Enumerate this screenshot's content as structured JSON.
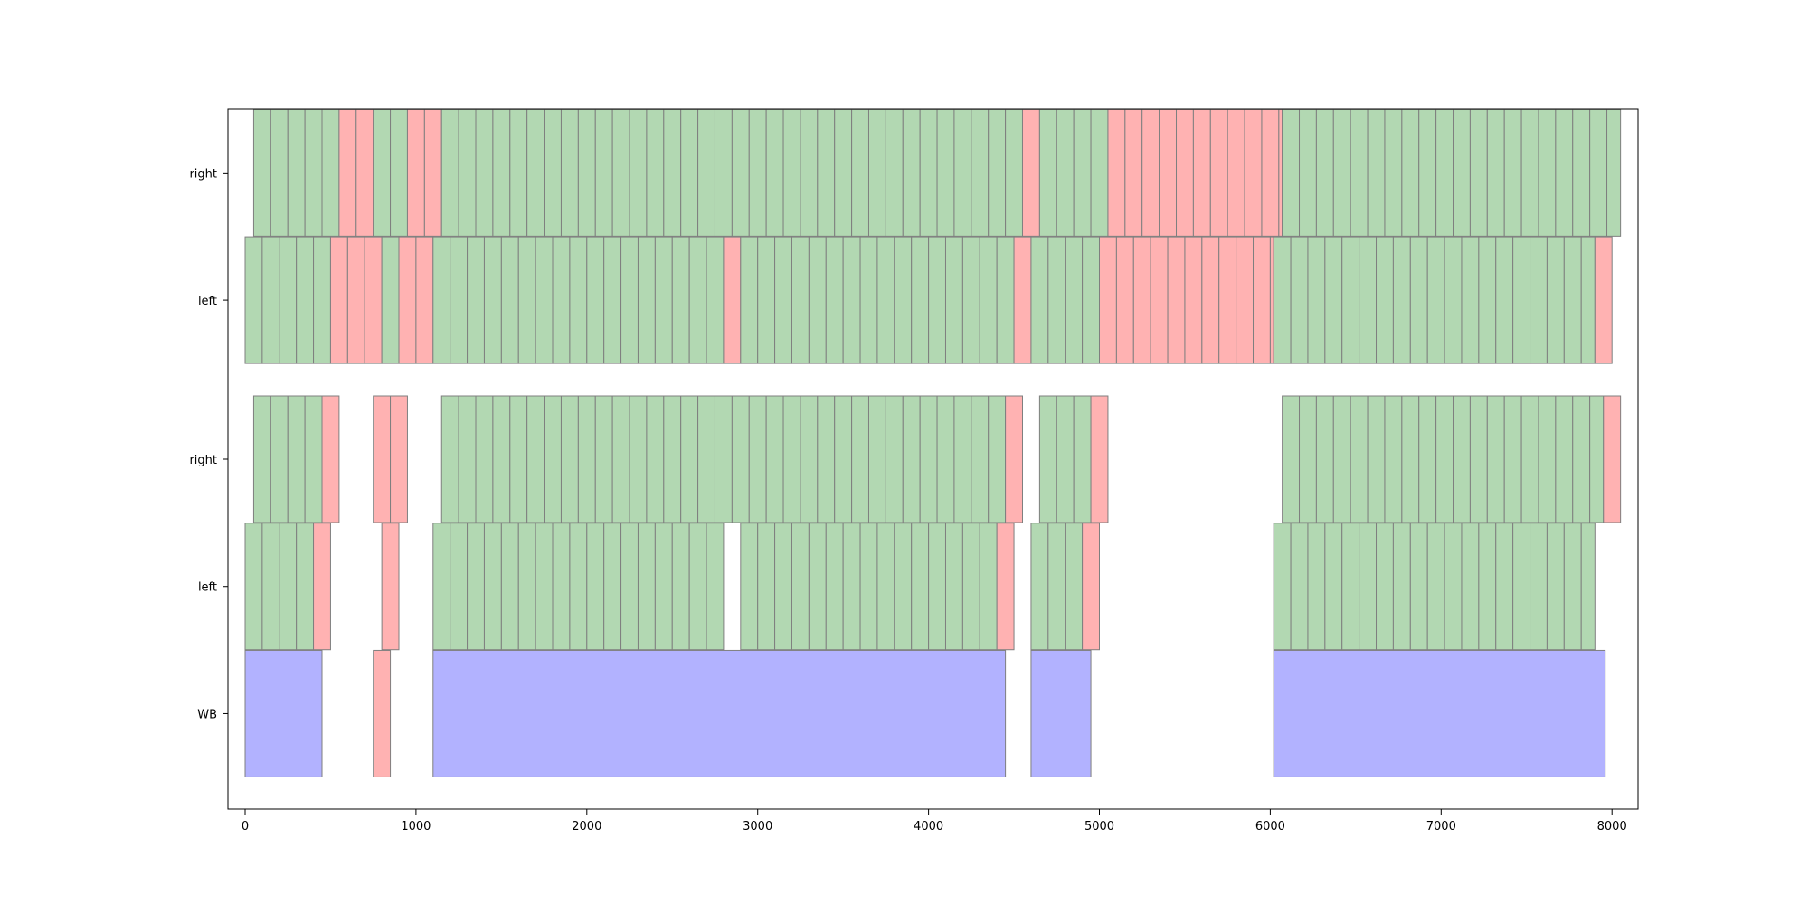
{
  "chart_data": {
    "type": "broken_barh",
    "title": "",
    "xlabel": "",
    "ylabel": "",
    "xlim": [
      -100,
      8150
    ],
    "xticks": [
      0,
      1000,
      2000,
      3000,
      4000,
      5000,
      6000,
      7000,
      8000
    ],
    "grid": false,
    "legend": "none",
    "colors": {
      "green": "#b2d8b2",
      "red": "#ffb2b2",
      "blue": "#b2b2ff",
      "edge": "#7f7f7f"
    },
    "rows": [
      {
        "label": "right",
        "band_center": 4.5,
        "segments": [
          {
            "start": 50,
            "end": 550,
            "color": "green"
          },
          {
            "start": 550,
            "end": 750,
            "color": "red"
          },
          {
            "start": 750,
            "end": 950,
            "color": "green"
          },
          {
            "start": 950,
            "end": 1150,
            "color": "red"
          },
          {
            "start": 1150,
            "end": 4550,
            "color": "green"
          },
          {
            "start": 4550,
            "end": 4650,
            "color": "red"
          },
          {
            "start": 4650,
            "end": 5050,
            "color": "green"
          },
          {
            "start": 5050,
            "end": 6070,
            "color": "red"
          },
          {
            "start": 6070,
            "end": 8050,
            "color": "green"
          }
        ]
      },
      {
        "label": "left",
        "band_center": 3.5,
        "segments": [
          {
            "start": 0,
            "end": 500,
            "color": "green"
          },
          {
            "start": 500,
            "end": 800,
            "color": "red"
          },
          {
            "start": 800,
            "end": 900,
            "color": "green"
          },
          {
            "start": 900,
            "end": 1100,
            "color": "red"
          },
          {
            "start": 1100,
            "end": 2800,
            "color": "green"
          },
          {
            "start": 2800,
            "end": 2900,
            "color": "red"
          },
          {
            "start": 2900,
            "end": 4500,
            "color": "green"
          },
          {
            "start": 4500,
            "end": 4600,
            "color": "red"
          },
          {
            "start": 4600,
            "end": 5000,
            "color": "green"
          },
          {
            "start": 5000,
            "end": 6020,
            "color": "red"
          },
          {
            "start": 6020,
            "end": 7900,
            "color": "green"
          },
          {
            "start": 7900,
            "end": 8000,
            "color": "red"
          }
        ]
      },
      {
        "label": "right",
        "band_center": 2.25,
        "segments": [
          {
            "start": 50,
            "end": 450,
            "color": "green"
          },
          {
            "start": 450,
            "end": 550,
            "color": "red"
          },
          {
            "start": 750,
            "end": 950,
            "color": "red"
          },
          {
            "start": 1150,
            "end": 4450,
            "color": "green"
          },
          {
            "start": 4450,
            "end": 4550,
            "color": "red"
          },
          {
            "start": 4650,
            "end": 4950,
            "color": "green"
          },
          {
            "start": 4950,
            "end": 5050,
            "color": "red"
          },
          {
            "start": 6070,
            "end": 7950,
            "color": "green"
          },
          {
            "start": 7950,
            "end": 8050,
            "color": "red"
          }
        ]
      },
      {
        "label": "left",
        "band_center": 1.25,
        "segments": [
          {
            "start": 0,
            "end": 400,
            "color": "green"
          },
          {
            "start": 400,
            "end": 500,
            "color": "red"
          },
          {
            "start": 800,
            "end": 900,
            "color": "red"
          },
          {
            "start": 1100,
            "end": 2800,
            "color": "green"
          },
          {
            "start": 2900,
            "end": 4400,
            "color": "green"
          },
          {
            "start": 4400,
            "end": 4500,
            "color": "red"
          },
          {
            "start": 4600,
            "end": 4900,
            "color": "green"
          },
          {
            "start": 4900,
            "end": 5000,
            "color": "red"
          },
          {
            "start": 6020,
            "end": 7900,
            "color": "green"
          }
        ]
      },
      {
        "label": "WB",
        "band_center": 0.25,
        "segments": [
          {
            "start": 0,
            "end": 450,
            "color": "blue"
          },
          {
            "start": 750,
            "end": 850,
            "color": "red"
          },
          {
            "start": 1100,
            "end": 4450,
            "color": "blue"
          },
          {
            "start": 4600,
            "end": 4950,
            "color": "blue"
          },
          {
            "start": 6020,
            "end": 7960,
            "color": "blue"
          }
        ]
      }
    ]
  }
}
